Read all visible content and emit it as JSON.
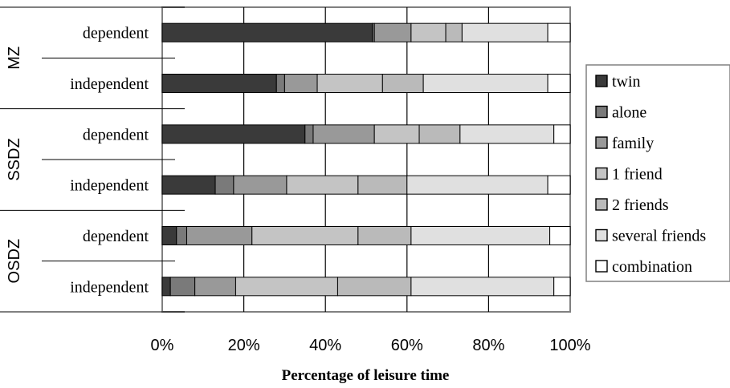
{
  "chart_data": {
    "type": "bar",
    "orientation": "horizontal",
    "stacked": "percent",
    "xlabel": "Percentage of leisure time",
    "xlim": [
      0,
      100
    ],
    "xticks": [
      "0%",
      "20%",
      "40%",
      "60%",
      "80%",
      "100%"
    ],
    "grid": true,
    "legend_position": "right",
    "groups": [
      {
        "name": "MZ",
        "rows": [
          "dependent",
          "independent"
        ]
      },
      {
        "name": "SSDZ",
        "rows": [
          "dependent",
          "independent"
        ]
      },
      {
        "name": "OSDZ",
        "rows": [
          "dependent",
          "independent"
        ]
      }
    ],
    "categories": [
      "dependent",
      "independent",
      "dependent",
      "independent",
      "dependent",
      "independent"
    ],
    "series": [
      {
        "name": "twin",
        "color": "#3a3a3a",
        "values": [
          51.5,
          28,
          35,
          13,
          3.5,
          2
        ]
      },
      {
        "name": "alone",
        "color": "#7a7a7a",
        "values": [
          0.5,
          2,
          2,
          4.5,
          2.5,
          6
        ]
      },
      {
        "name": "family",
        "color": "#999999",
        "values": [
          9,
          8,
          15,
          13,
          16,
          10
        ]
      },
      {
        "name": "1 friend",
        "color": "#c4c4c4",
        "values": [
          8.5,
          16,
          11,
          17.5,
          26,
          25
        ]
      },
      {
        "name": "2 friends",
        "color": "#bababa",
        "values": [
          4,
          10,
          10,
          12,
          13,
          18
        ]
      },
      {
        "name": "several friends",
        "color": "#e0e0e0",
        "values": [
          21,
          30.5,
          23,
          34.5,
          34,
          35
        ]
      },
      {
        "name": "combination",
        "color": "#ffffff",
        "values": [
          5.5,
          5.5,
          4,
          5.5,
          5,
          4
        ]
      }
    ]
  }
}
